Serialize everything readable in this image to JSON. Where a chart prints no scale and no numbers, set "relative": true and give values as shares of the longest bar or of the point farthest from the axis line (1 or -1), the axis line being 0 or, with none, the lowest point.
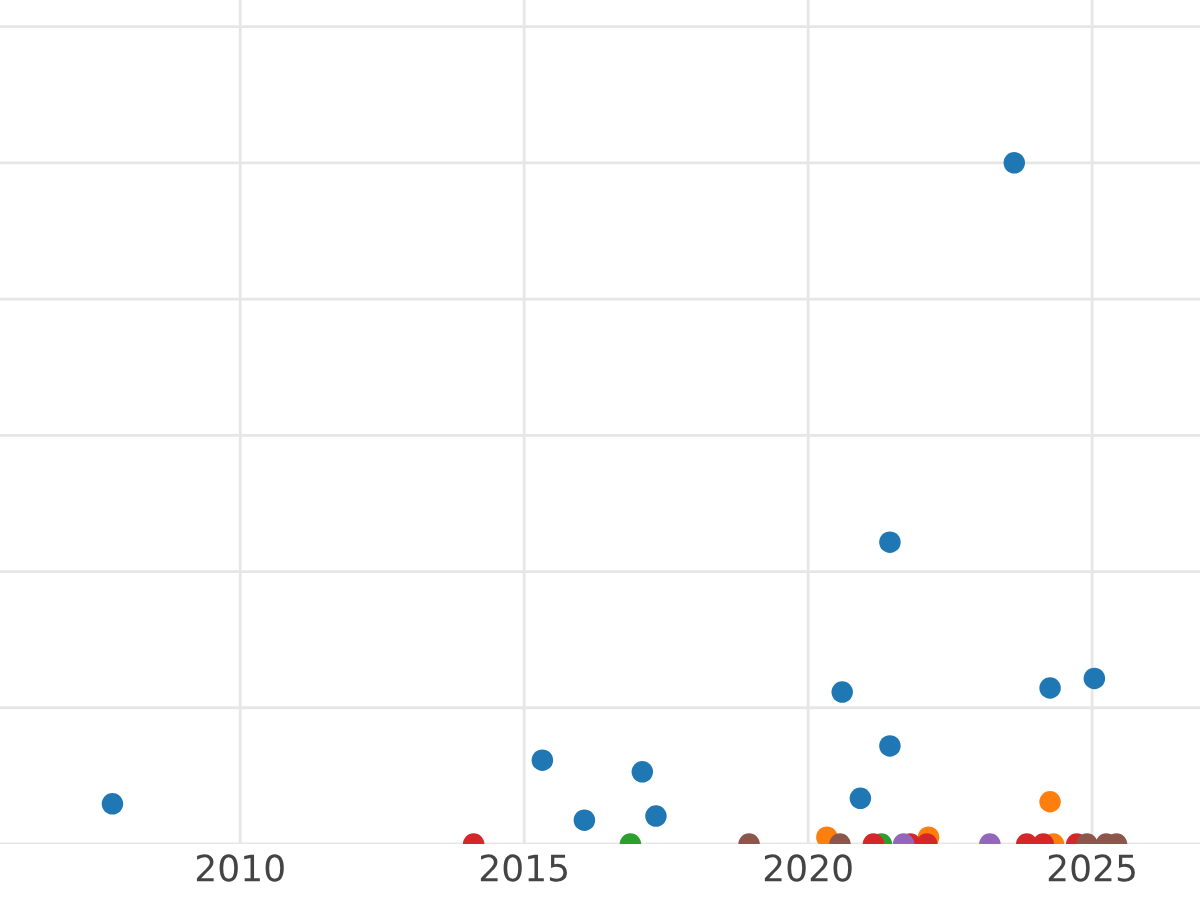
{
  "chart_data": {
    "type": "scatter",
    "relative": true,
    "grid": true,
    "marker": "circle",
    "xlim": [
      2005.77,
      2026.9
    ],
    "xticks": [
      2010,
      2015,
      2020,
      2025
    ],
    "series": [
      {
        "color": "#1f77b4",
        "x": [
          2007.75,
          2015.32,
          2016.06,
          2017.08,
          2017.32,
          2020.6,
          2020.92,
          2021.44,
          2021.44,
          2023.63,
          2024.26,
          2025.04
        ],
        "values": [
          0.059,
          0.123,
          0.035,
          0.106,
          0.041,
          0.223,
          0.067,
          0.144,
          0.443,
          1,
          0.229,
          0.243
        ]
      },
      {
        "color": "#ff7f0e",
        "x": [
          2020.33,
          2022.12,
          2024.32,
          2024.26
        ],
        "values": [
          0.01,
          0.01,
          0,
          0.062
        ]
      },
      {
        "color": "#2ca02c",
        "x": [
          2016.87,
          2021.29
        ],
        "values": [
          0,
          0
        ]
      },
      {
        "color": "#d62728",
        "x": [
          2014.11,
          2021.15,
          2021.8,
          2022.09,
          2023.85,
          2024.14,
          2024.73
        ],
        "values": [
          0,
          0,
          0,
          0,
          0,
          0,
          0
        ]
      },
      {
        "color": "#9467bd",
        "x": [
          2021.68,
          2023.2
        ],
        "values": [
          0,
          0
        ]
      },
      {
        "color": "#8c564b",
        "x": [
          2018.96,
          2020.56,
          2024.91,
          2025.25,
          2025.43
        ],
        "values": [
          0,
          0,
          0,
          0,
          0
        ]
      }
    ]
  }
}
